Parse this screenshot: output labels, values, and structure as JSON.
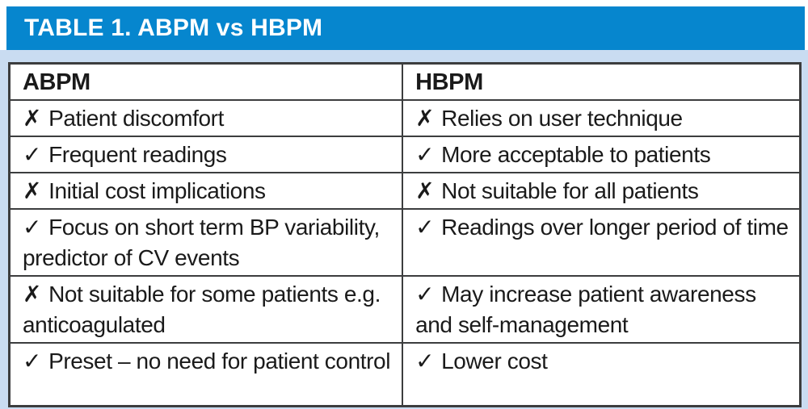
{
  "title_bar": {
    "title": "TABLE 1. ABPM vs HBPM"
  },
  "colors": {
    "title_bar_bg": "#0686CE",
    "title_text": "#FFFFFF",
    "panel_bg": "#C9DCF1",
    "table_bg": "#FFFFFF",
    "table_border": "#3C3D3E",
    "body_text": "#1A1A1A"
  },
  "icons": {
    "cross": "✗",
    "check": "✓"
  },
  "table": {
    "columns": [
      "ABPM",
      "HBPM"
    ],
    "rows": [
      {
        "left": {
          "mark": "✗",
          "text": "Patient discomfort"
        },
        "right": {
          "mark": "✗",
          "text": "Relies on user technique"
        }
      },
      {
        "left": {
          "mark": "✓",
          "text": "Frequent readings"
        },
        "right": {
          "mark": "✓",
          "text": "More acceptable to patients"
        }
      },
      {
        "left": {
          "mark": "✗",
          "text": "Initial cost implications"
        },
        "right": {
          "mark": "✗",
          "text": "Not suitable for all patients"
        }
      },
      {
        "left": {
          "mark": "✓",
          "text": "Focus on short term BP variability, predictor of CV events"
        },
        "right": {
          "mark": "✓",
          "text": "Readings over longer period of time"
        }
      },
      {
        "left": {
          "mark": "✗",
          "text": "Not suitable for some patients e.g. anticoagulated"
        },
        "right": {
          "mark": "✓",
          "text": "May increase patient awareness and self-management"
        }
      },
      {
        "left": {
          "mark": "✓",
          "text": "Preset – no need for patient control"
        },
        "right": {
          "mark": "✓",
          "text": "Lower cost"
        }
      }
    ]
  }
}
